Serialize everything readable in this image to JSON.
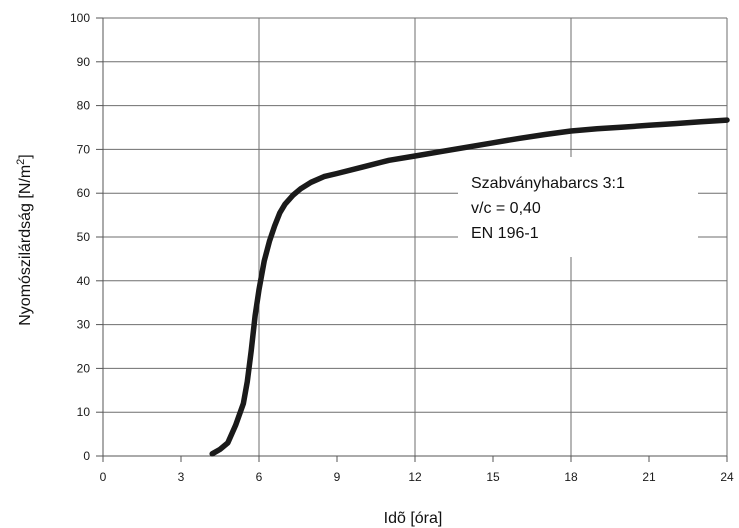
{
  "chart_data": {
    "type": "line",
    "title": "",
    "xlabel": "Idõ [óra]",
    "ylabel": "Nyomószilárdság [N/m²]",
    "ylabel_main": "Nyomószilárdság [N/m",
    "ylabel_sup": "2",
    "ylabel_end": "]",
    "xlim": [
      0,
      24
    ],
    "ylim": [
      0,
      100
    ],
    "x_ticks": [
      "0",
      "3",
      "6",
      "9",
      "12",
      "15",
      "18",
      "21",
      "24"
    ],
    "y_ticks": [
      "0",
      "10",
      "20",
      "30",
      "40",
      "50",
      "60",
      "70",
      "80",
      "90",
      "100"
    ],
    "grid": true,
    "annotation": [
      "Szabványhabarcs 3:1",
      "v/c = 0,40",
      "EN 196-1"
    ],
    "series": [
      {
        "x": [
          4.2,
          4.5,
          4.8,
          5.1,
          5.4,
          5.55,
          5.7,
          5.85,
          6.0,
          6.2,
          6.4,
          6.6,
          6.8,
          7.0,
          7.3,
          7.6,
          8.0,
          8.5,
          9.0,
          10.0,
          11.0,
          12.0,
          13.0,
          14.0,
          15.0,
          16.0,
          17.0,
          18.0,
          19.0,
          20.0,
          21.0,
          22.0,
          23.0,
          24.0
        ],
        "y": [
          0.5,
          1.5,
          3.0,
          7.0,
          12.0,
          17.0,
          24.0,
          32.0,
          38.0,
          44.5,
          49.0,
          52.5,
          55.5,
          57.5,
          59.5,
          61.0,
          62.5,
          63.8,
          64.5,
          66.0,
          67.5,
          68.5,
          69.5,
          70.5,
          71.5,
          72.5,
          73.4,
          74.2,
          74.7,
          75.1,
          75.5,
          75.9,
          76.3,
          76.7
        ],
        "color": "#1a1a1a"
      }
    ]
  }
}
